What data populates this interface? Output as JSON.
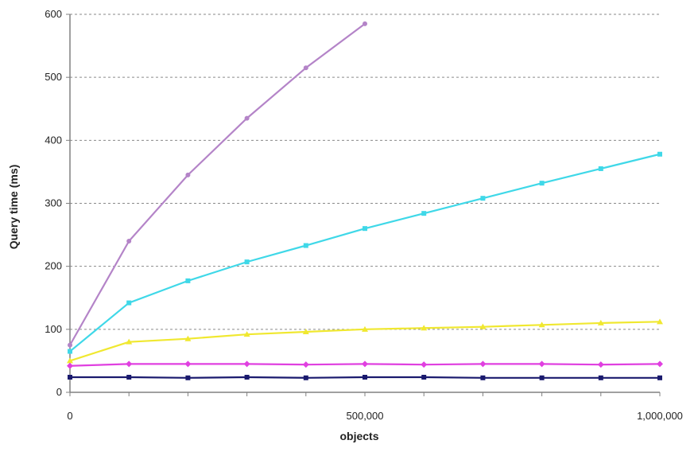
{
  "chart_data": {
    "type": "line",
    "title": "",
    "xlabel": "objects",
    "ylabel": "Query time (ms)",
    "xlim": [
      0,
      1000000
    ],
    "ylim": [
      0,
      600
    ],
    "x_ticks": [
      {
        "value": 0,
        "label": "0"
      },
      {
        "value": 500000,
        "label": "500,000"
      },
      {
        "value": 1000000,
        "label": "1,000,000"
      }
    ],
    "y_ticks": [
      {
        "value": 0,
        "label": "0"
      },
      {
        "value": 100,
        "label": "100"
      },
      {
        "value": 200,
        "label": "200"
      },
      {
        "value": 300,
        "label": "300"
      },
      {
        "value": 400,
        "label": "400"
      },
      {
        "value": 500,
        "label": "500"
      },
      {
        "value": 600,
        "label": "600"
      }
    ],
    "grid": true,
    "legend": "right (partially cut off, unreadable)",
    "series": [
      {
        "color": "#b484c8",
        "marker": "circle",
        "x": [
          0,
          100000,
          200000,
          300000,
          400000,
          500000
        ],
        "y": [
          75,
          240,
          345,
          435,
          515,
          585
        ]
      },
      {
        "color": "#3fd8e8",
        "marker": "square",
        "x": [
          0,
          100000,
          200000,
          300000,
          400000,
          500000,
          600000,
          700000,
          800000,
          900000,
          1000000
        ],
        "y": [
          65,
          142,
          177,
          207,
          233,
          260,
          284,
          308,
          332,
          355,
          378
        ]
      },
      {
        "color": "#f0e830",
        "marker": "triangle",
        "x": [
          0,
          100000,
          200000,
          300000,
          400000,
          500000,
          600000,
          700000,
          800000,
          900000,
          1000000
        ],
        "y": [
          50,
          80,
          85,
          92,
          96,
          100,
          102,
          104,
          107,
          110,
          112
        ]
      },
      {
        "color": "#e040e0",
        "marker": "diamond",
        "x": [
          0,
          100000,
          200000,
          300000,
          400000,
          500000,
          600000,
          700000,
          800000,
          900000,
          1000000
        ],
        "y": [
          42,
          45,
          45,
          45,
          44,
          45,
          44,
          45,
          45,
          44,
          45
        ]
      },
      {
        "color": "#1a1a6e",
        "marker": "square",
        "x": [
          0,
          100000,
          200000,
          300000,
          400000,
          500000,
          600000,
          700000,
          800000,
          900000,
          1000000
        ],
        "y": [
          24,
          24,
          23,
          24,
          23,
          24,
          24,
          23,
          23,
          23,
          23
        ]
      }
    ]
  }
}
